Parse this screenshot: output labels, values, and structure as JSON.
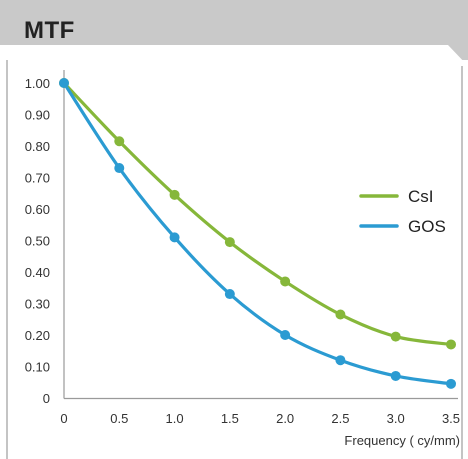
{
  "header": {
    "title": "MTF"
  },
  "colors": {
    "header_band": "#c9c9c9",
    "frame": "#c4c4c4",
    "axis": "#9a9a9a",
    "csi": "#86b73a",
    "gos": "#2b9bd2"
  },
  "chart_data": {
    "type": "line",
    "title": "MTF",
    "xlabel": "Frequency ( cy/mm)",
    "ylabel": "",
    "xlim": [
      0,
      3.5
    ],
    "ylim": [
      0,
      1.0
    ],
    "x_ticks": [
      "0",
      "0.5",
      "1.0",
      "1.5",
      "2.0",
      "2.5",
      "3.0",
      "3.5"
    ],
    "y_ticks": [
      "0",
      "0.10",
      "0.20",
      "0.30",
      "0.40",
      "0.50",
      "0.60",
      "0.70",
      "0.80",
      "0.90",
      "1.00"
    ],
    "grid": false,
    "legend_position": "right",
    "x": [
      0,
      0.5,
      1.0,
      1.5,
      2.0,
      2.5,
      3.0,
      3.5
    ],
    "series": [
      {
        "name": "CsI",
        "color": "#86b73a",
        "values": [
          1.0,
          0.815,
          0.645,
          0.495,
          0.37,
          0.265,
          0.195,
          0.17
        ]
      },
      {
        "name": "GOS",
        "color": "#2b9bd2",
        "values": [
          1.0,
          0.73,
          0.51,
          0.33,
          0.2,
          0.12,
          0.07,
          0.045
        ]
      }
    ]
  }
}
